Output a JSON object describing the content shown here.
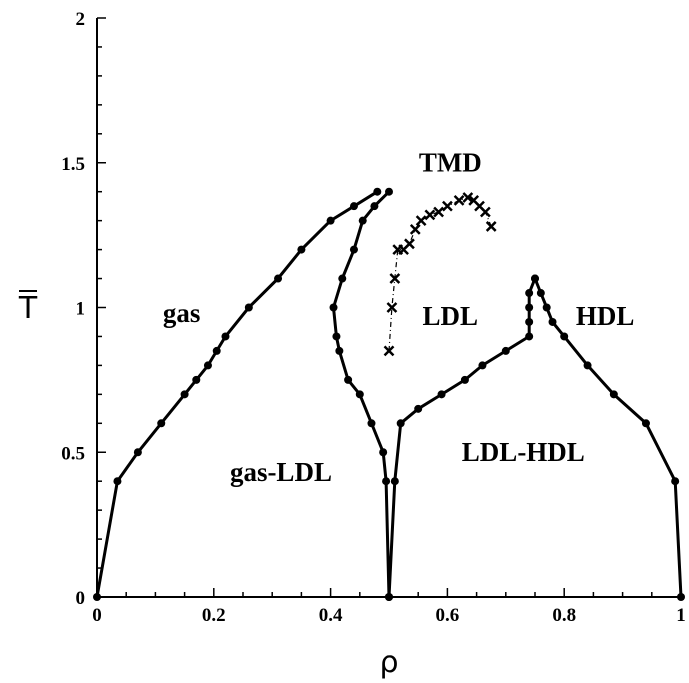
{
  "chart_data": {
    "type": "line",
    "xlabel": "ρ",
    "ylabel": "T",
    "ylabel_overline": true,
    "xlim": [
      0,
      1
    ],
    "ylim": [
      0,
      2
    ],
    "x_ticks": [
      {
        "value": 0,
        "label": "0"
      },
      {
        "value": 0.2,
        "label": "0.2"
      },
      {
        "value": 0.4,
        "label": "0.4"
      },
      {
        "value": 0.6,
        "label": "0.6"
      },
      {
        "value": 0.8,
        "label": "0.8"
      },
      {
        "value": 1,
        "label": "1"
      }
    ],
    "y_ticks": [
      {
        "value": 0,
        "label": "0"
      },
      {
        "value": 0.5,
        "label": "0.5"
      },
      {
        "value": 1,
        "label": "1"
      },
      {
        "value": 1.5,
        "label": "1.5"
      },
      {
        "value": 2,
        "label": "2"
      }
    ],
    "grid": false,
    "series": [
      {
        "marker": "circle",
        "style": "solid",
        "points": [
          [
            0,
            0
          ],
          [
            0.035,
            0.4
          ],
          [
            0.07,
            0.5
          ],
          [
            0.11,
            0.6
          ],
          [
            0.15,
            0.7
          ],
          [
            0.17,
            0.75
          ],
          [
            0.19,
            0.8
          ],
          [
            0.205,
            0.85
          ],
          [
            0.22,
            0.9
          ],
          [
            0.26,
            1.0
          ],
          [
            0.31,
            1.1
          ],
          [
            0.35,
            1.2
          ],
          [
            0.4,
            1.3
          ],
          [
            0.44,
            1.35
          ],
          [
            0.48,
            1.4
          ]
        ]
      },
      {
        "marker": "circle",
        "style": "solid",
        "points": [
          [
            0.5,
            1.4
          ],
          [
            0.475,
            1.35
          ],
          [
            0.455,
            1.3
          ],
          [
            0.44,
            1.2
          ],
          [
            0.42,
            1.1
          ],
          [
            0.405,
            1.0
          ],
          [
            0.41,
            0.9
          ],
          [
            0.415,
            0.85
          ],
          [
            0.43,
            0.75
          ],
          [
            0.45,
            0.7
          ],
          [
            0.47,
            0.6
          ],
          [
            0.49,
            0.5
          ],
          [
            0.495,
            0.4
          ],
          [
            0.5,
            0
          ]
        ]
      },
      {
        "marker": "circle",
        "style": "solid",
        "points": [
          [
            0.5,
            0
          ],
          [
            0.51,
            0.4
          ],
          [
            0.52,
            0.6
          ],
          [
            0.55,
            0.65
          ],
          [
            0.59,
            0.7
          ],
          [
            0.63,
            0.75
          ],
          [
            0.66,
            0.8
          ],
          [
            0.7,
            0.85
          ],
          [
            0.74,
            0.9
          ],
          [
            0.74,
            0.95
          ],
          [
            0.74,
            1.0
          ],
          [
            0.74,
            1.05
          ],
          [
            0.75,
            1.1
          ]
        ]
      },
      {
        "marker": "circle",
        "style": "solid",
        "points": [
          [
            0.75,
            1.1
          ],
          [
            0.76,
            1.05
          ],
          [
            0.77,
            1.0
          ],
          [
            0.78,
            0.95
          ],
          [
            0.8,
            0.9
          ],
          [
            0.84,
            0.8
          ],
          [
            0.885,
            0.7
          ],
          [
            0.94,
            0.6
          ],
          [
            0.99,
            0.4
          ],
          [
            1,
            0
          ]
        ]
      },
      {
        "marker": "x",
        "style": "dash-dot",
        "points": [
          [
            0.5,
            0.85
          ],
          [
            0.505,
            1.0
          ],
          [
            0.51,
            1.1
          ],
          [
            0.515,
            1.2
          ],
          [
            0.525,
            1.2
          ],
          [
            0.535,
            1.22
          ],
          [
            0.545,
            1.27
          ],
          [
            0.555,
            1.3
          ],
          [
            0.57,
            1.32
          ],
          [
            0.585,
            1.33
          ],
          [
            0.6,
            1.35
          ],
          [
            0.62,
            1.37
          ],
          [
            0.635,
            1.38
          ],
          [
            0.645,
            1.37
          ],
          [
            0.655,
            1.35
          ],
          [
            0.665,
            1.33
          ],
          [
            0.675,
            1.28
          ]
        ]
      }
    ],
    "annotations": [
      {
        "text": "gas",
        "x": 0.145,
        "y": 0.95
      },
      {
        "text": "gas-LDL",
        "x": 0.315,
        "y": 0.4
      },
      {
        "text": "TMD",
        "x": 0.605,
        "y": 1.47
      },
      {
        "text": "LDL",
        "x": 0.605,
        "y": 0.94
      },
      {
        "text": "HDL",
        "x": 0.87,
        "y": 0.94
      },
      {
        "text": "LDL-HDL",
        "x": 0.73,
        "y": 0.47
      }
    ]
  }
}
